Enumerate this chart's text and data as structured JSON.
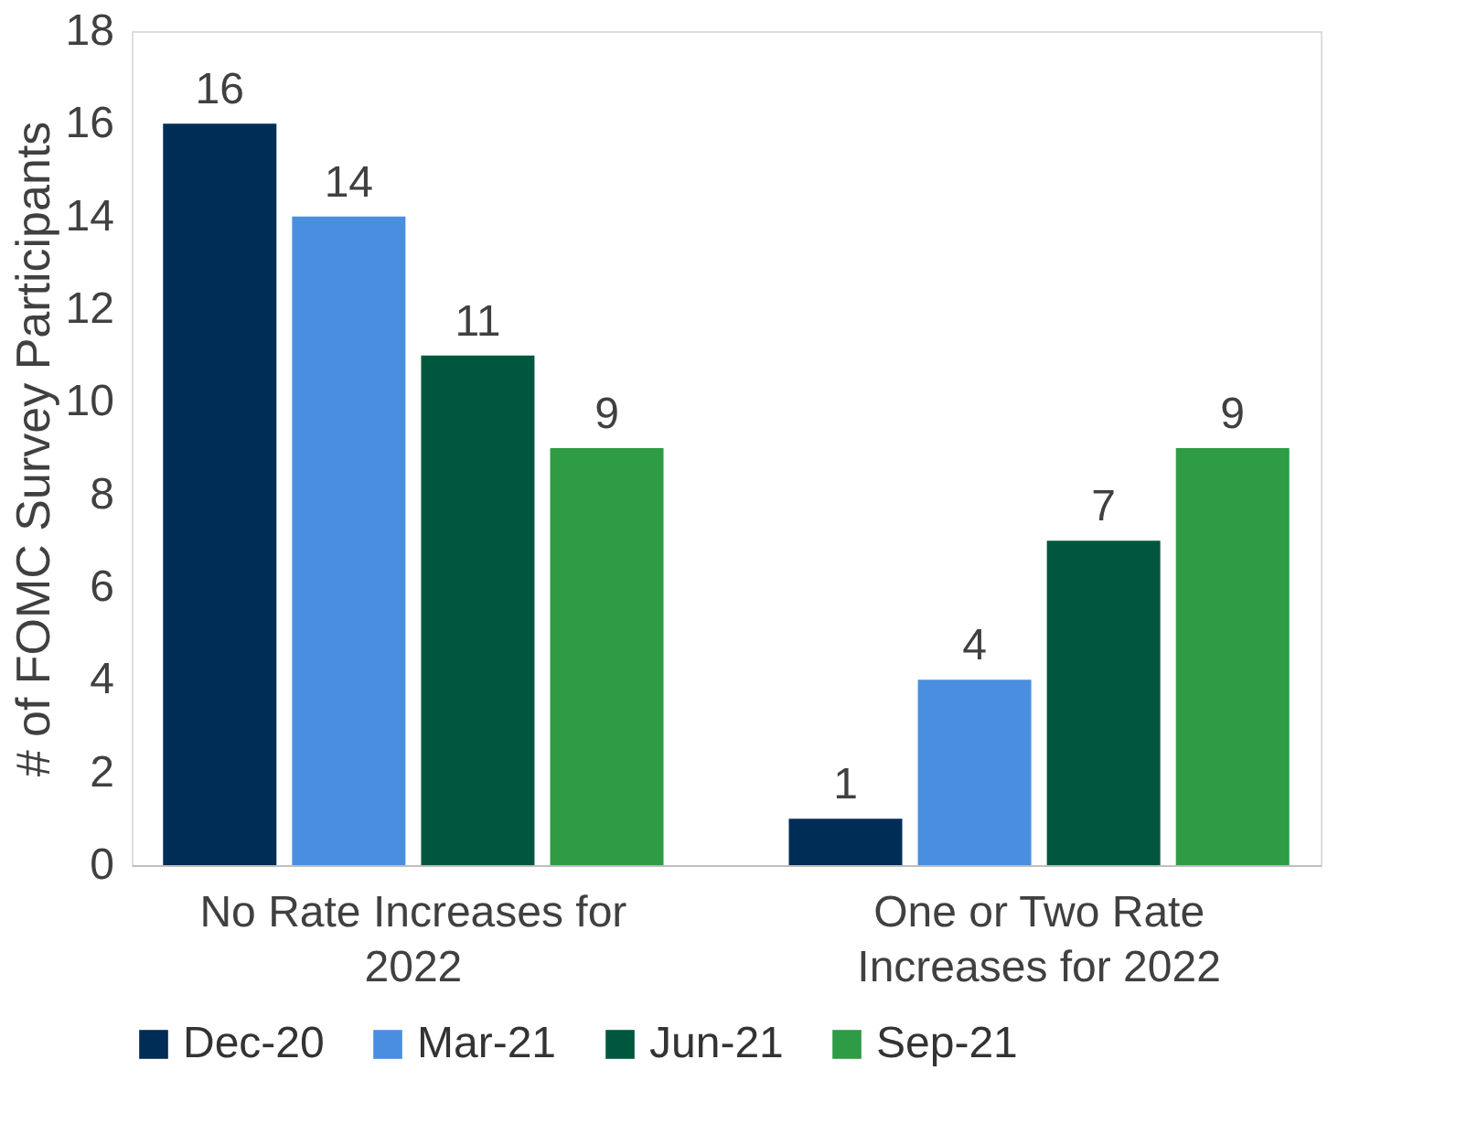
{
  "chart_data": {
    "type": "bar",
    "ylabel": "# of FOMC Survey Participants",
    "categories": [
      "No Rate Increases for 2022",
      "One or Two Rate Increases for 2022"
    ],
    "series": [
      {
        "name": "Dec-20",
        "color": "#002d56",
        "values": [
          16,
          1
        ]
      },
      {
        "name": "Mar-21",
        "color": "#4a8ee0",
        "values": [
          14,
          4
        ]
      },
      {
        "name": "Jun-21",
        "color": "#00573d",
        "values": [
          11,
          7
        ]
      },
      {
        "name": "Sep-21",
        "color": "#2e9b45",
        "values": [
          9,
          9
        ]
      }
    ],
    "ylim": [
      0,
      18
    ],
    "yticks": [
      0,
      2,
      4,
      6,
      8,
      10,
      12,
      14,
      16,
      18
    ],
    "grid": false,
    "legend": "bottom",
    "data_labels": true
  }
}
